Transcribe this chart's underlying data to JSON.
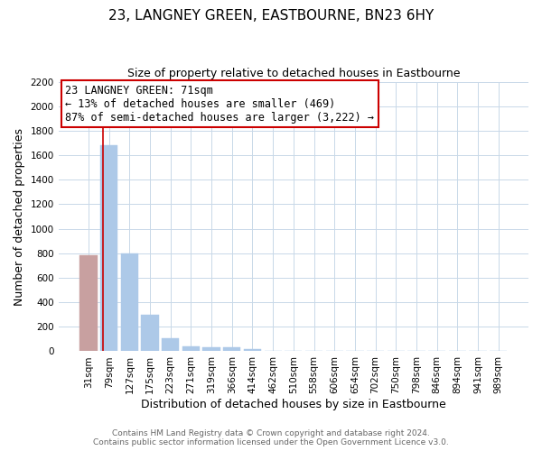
{
  "title": "23, LANGNEY GREEN, EASTBOURNE, BN23 6HY",
  "subtitle": "Size of property relative to detached houses in Eastbourne",
  "xlabel": "Distribution of detached houses by size in Eastbourne",
  "ylabel": "Number of detached properties",
  "categories": [
    "31sqm",
    "79sqm",
    "127sqm",
    "175sqm",
    "223sqm",
    "271sqm",
    "319sqm",
    "366sqm",
    "414sqm",
    "462sqm",
    "510sqm",
    "558sqm",
    "606sqm",
    "654sqm",
    "702sqm",
    "750sqm",
    "798sqm",
    "846sqm",
    "894sqm",
    "941sqm",
    "989sqm"
  ],
  "values": [
    780,
    1680,
    800,
    295,
    110,
    38,
    30,
    30,
    20,
    0,
    0,
    0,
    0,
    0,
    0,
    0,
    0,
    0,
    0,
    0,
    0
  ],
  "bar_color_normal": "#adc9e8",
  "bar_color_highlight": "#c8a0a0",
  "annotation_line1": "23 LANGNEY GREEN: 71sqm",
  "annotation_line2": "← 13% of detached houses are smaller (469)",
  "annotation_line3": "87% of semi-detached houses are larger (3,222) →",
  "annotation_box_color": "#ffffff",
  "annotation_box_edge": "#cc0000",
  "ylim": [
    0,
    2200
  ],
  "yticks": [
    0,
    200,
    400,
    600,
    800,
    1000,
    1200,
    1400,
    1600,
    1800,
    2000,
    2200
  ],
  "footer_line1": "Contains HM Land Registry data © Crown copyright and database right 2024.",
  "footer_line2": "Contains public sector information licensed under the Open Government Licence v3.0.",
  "background_color": "#ffffff",
  "grid_color": "#c8d8e8",
  "title_fontsize": 11,
  "subtitle_fontsize": 9,
  "axis_label_fontsize": 9,
  "tick_fontsize": 7.5,
  "annotation_fontsize": 8.5,
  "footer_fontsize": 6.5,
  "red_line_x": 0.72
}
